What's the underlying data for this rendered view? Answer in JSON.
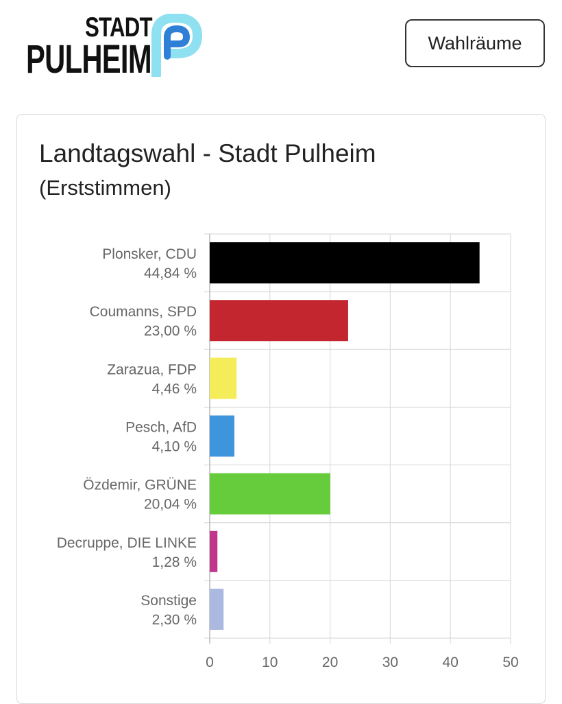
{
  "header": {
    "logo": {
      "line1": "STADT",
      "line2": "PULHEIM"
    },
    "button_label": "Wahlräume"
  },
  "card": {
    "title": "Landtagswahl - Stadt Pulheim",
    "subtitle": "(Erststimmen)"
  },
  "colors": {
    "grid": "#dcdcdc",
    "axis": "#bbbbbb",
    "logo_mark_light": "#8fe0f0",
    "logo_mark_dark": "#2f7fd6"
  },
  "chart_data": {
    "type": "bar",
    "orientation": "horizontal",
    "categories": [
      {
        "name": "Plonsker, CDU",
        "value_label": "44,84 %"
      },
      {
        "name": "Coumanns, SPD",
        "value_label": "23,00 %"
      },
      {
        "name": "Zarazua, FDP",
        "value_label": "4,46 %"
      },
      {
        "name": "Pesch, AfD",
        "value_label": "4,10 %"
      },
      {
        "name": "Özdemir, GRÜNE",
        "value_label": "20,04 %"
      },
      {
        "name": "Decruppe, DIE LINKE",
        "value_label": "1,28 %"
      },
      {
        "name": "Sonstige",
        "value_label": "2,30 %"
      }
    ],
    "values": [
      44.84,
      23.0,
      4.46,
      4.1,
      20.04,
      1.28,
      2.3
    ],
    "colors": [
      "#000000",
      "#c4262f",
      "#f5ec5a",
      "#3e95db",
      "#66cc3c",
      "#c0378c",
      "#abb9e0"
    ],
    "xlim": [
      0,
      50
    ],
    "xticks": [
      0,
      10,
      20,
      30,
      40,
      50
    ],
    "grid": true,
    "legend": "none"
  }
}
